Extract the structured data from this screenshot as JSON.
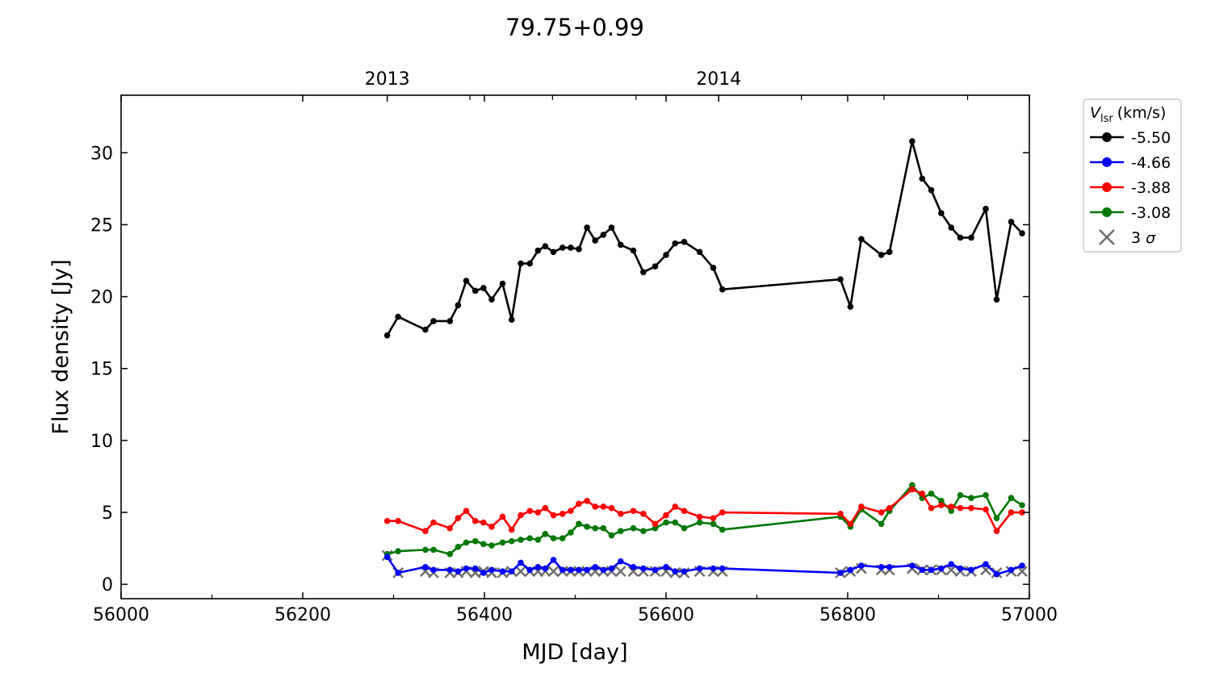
{
  "chart_data": {
    "type": "line",
    "title": "79.75+0.99",
    "xlabel": "MJD [day]",
    "ylabel": "Flux density [Jy]",
    "xlim": [
      56000,
      57000
    ],
    "ylim": [
      -1,
      34
    ],
    "x_ticks": [
      56000,
      56200,
      56400,
      56600,
      56800,
      57000
    ],
    "x_tick_labels": [
      "56000",
      "56200",
      "56400",
      "56600",
      "56800",
      "57000"
    ],
    "y_ticks": [
      0,
      5,
      10,
      15,
      20,
      25,
      30
    ],
    "y_tick_labels": [
      "0",
      "5",
      "10",
      "15",
      "20",
      "25",
      "30"
    ],
    "top_axis": {
      "ticks": [
        56293,
        56658
      ],
      "labels": [
        "2013",
        "2014"
      ]
    },
    "legend": {
      "title_main": "V",
      "title_sub": "lsr",
      "title_rest": "(km/s)",
      "placement": "outside-top-right"
    },
    "grid": false,
    "series": [
      {
        "name": "-5.50",
        "color": "#000000",
        "marker": "circle",
        "x": [
          56293,
          56305,
          56335,
          56344,
          56362,
          56371,
          56380,
          56390,
          56399,
          56408,
          56420,
          56430,
          56440,
          56450,
          56459,
          56467,
          56476,
          56486,
          56495,
          56504,
          56513,
          56522,
          56531,
          56540,
          56550,
          56564,
          56575,
          56588,
          56600,
          56610,
          56620,
          56637,
          56652,
          56662,
          56792,
          56803,
          56815,
          56837,
          56846,
          56871,
          56882,
          56892,
          56903,
          56914,
          56924,
          56936,
          56952,
          56964,
          56980,
          56992
        ],
        "y": [
          17.3,
          18.6,
          17.7,
          18.3,
          18.3,
          19.4,
          21.1,
          20.4,
          20.6,
          19.8,
          20.9,
          18.4,
          22.3,
          22.3,
          23.2,
          23.5,
          23.1,
          23.4,
          23.4,
          23.3,
          24.8,
          23.9,
          24.3,
          24.8,
          23.6,
          23.2,
          21.7,
          22.1,
          22.9,
          23.7,
          23.8,
          23.1,
          22.0,
          20.5,
          21.2,
          19.3,
          24.0,
          22.9,
          23.1,
          30.8,
          28.2,
          27.4,
          25.8,
          24.8,
          24.1,
          24.1,
          26.1,
          19.8,
          25.2,
          24.4
        ]
      },
      {
        "name": "-4.66",
        "color": "#0000ff",
        "marker": "circle",
        "x": [
          56293,
          56305,
          56335,
          56344,
          56362,
          56371,
          56380,
          56390,
          56399,
          56408,
          56420,
          56430,
          56440,
          56450,
          56459,
          56467,
          56476,
          56486,
          56495,
          56504,
          56513,
          56522,
          56531,
          56540,
          56550,
          56564,
          56575,
          56588,
          56600,
          56610,
          56620,
          56637,
          56652,
          56662,
          56792,
          56803,
          56815,
          56837,
          56846,
          56871,
          56882,
          56892,
          56903,
          56914,
          56924,
          56936,
          56952,
          56964,
          56980,
          56992
        ],
        "y": [
          1.9,
          0.8,
          1.2,
          1.0,
          1.0,
          0.9,
          1.1,
          1.1,
          0.8,
          1.0,
          0.9,
          0.9,
          1.5,
          1.0,
          1.2,
          1.1,
          1.7,
          1.0,
          1.0,
          1.0,
          1.0,
          1.2,
          1.0,
          1.1,
          1.6,
          1.2,
          1.1,
          1.0,
          1.2,
          0.9,
          0.9,
          1.1,
          1.1,
          1.1,
          0.8,
          1.0,
          1.3,
          1.2,
          1.2,
          1.3,
          1.0,
          1.0,
          1.1,
          1.4,
          1.1,
          1.0,
          1.4,
          0.7,
          1.0,
          1.3
        ]
      },
      {
        "name": "-3.88",
        "color": "#ff0000",
        "marker": "circle",
        "x": [
          56293,
          56305,
          56335,
          56344,
          56362,
          56371,
          56380,
          56390,
          56399,
          56408,
          56420,
          56430,
          56440,
          56450,
          56459,
          56467,
          56476,
          56486,
          56495,
          56504,
          56513,
          56522,
          56531,
          56540,
          56550,
          56564,
          56575,
          56588,
          56600,
          56610,
          56620,
          56637,
          56652,
          56662,
          56792,
          56803,
          56815,
          56837,
          56846,
          56871,
          56882,
          56892,
          56903,
          56914,
          56924,
          56936,
          56952,
          56964,
          56980,
          56992
        ],
        "y": [
          4.4,
          4.4,
          3.7,
          4.3,
          3.9,
          4.6,
          5.1,
          4.4,
          4.3,
          4.0,
          4.7,
          3.8,
          4.8,
          5.1,
          5.0,
          5.3,
          4.8,
          4.9,
          5.1,
          5.6,
          5.8,
          5.4,
          5.4,
          5.3,
          4.9,
          5.1,
          4.9,
          4.2,
          4.8,
          5.4,
          5.1,
          4.7,
          4.6,
          5.0,
          4.9,
          4.2,
          5.4,
          5.0,
          5.3,
          6.6,
          6.3,
          5.3,
          5.5,
          5.4,
          5.3,
          5.3,
          5.2,
          3.7,
          5.0,
          5.0
        ]
      },
      {
        "name": "-3.08",
        "color": "#007800",
        "marker": "circle",
        "x": [
          56293,
          56305,
          56335,
          56344,
          56362,
          56371,
          56380,
          56390,
          56399,
          56408,
          56420,
          56430,
          56440,
          56450,
          56459,
          56467,
          56476,
          56486,
          56495,
          56504,
          56513,
          56522,
          56531,
          56540,
          56550,
          56564,
          56575,
          56588,
          56600,
          56610,
          56620,
          56637,
          56652,
          56662,
          56792,
          56803,
          56815,
          56837,
          56846,
          56871,
          56882,
          56892,
          56903,
          56914,
          56924,
          56936,
          56952,
          56964,
          56980,
          56992
        ],
        "y": [
          2.1,
          2.3,
          2.4,
          2.4,
          2.1,
          2.6,
          2.9,
          3.0,
          2.8,
          2.7,
          2.9,
          3.0,
          3.1,
          3.2,
          3.1,
          3.5,
          3.2,
          3.2,
          3.6,
          4.2,
          4.0,
          3.9,
          3.9,
          3.4,
          3.7,
          3.9,
          3.7,
          3.9,
          4.3,
          4.3,
          3.9,
          4.3,
          4.2,
          3.8,
          4.7,
          4.0,
          5.2,
          4.2,
          5.1,
          6.9,
          6.0,
          6.3,
          5.8,
          5.1,
          6.2,
          6.0,
          6.2,
          4.6,
          6.0,
          5.5
        ]
      },
      {
        "name": "3 σ",
        "name_main": "3",
        "name_sub": "σ",
        "color": "#6e6e6e",
        "marker": "x",
        "line": false,
        "x": [
          56293,
          56305,
          56335,
          56344,
          56362,
          56371,
          56380,
          56390,
          56399,
          56408,
          56420,
          56430,
          56440,
          56450,
          56459,
          56467,
          56476,
          56486,
          56495,
          56504,
          56513,
          56522,
          56531,
          56540,
          56550,
          56564,
          56575,
          56588,
          56600,
          56610,
          56620,
          56637,
          56652,
          56662,
          56792,
          56803,
          56815,
          56837,
          56846,
          56871,
          56882,
          56892,
          56903,
          56914,
          56924,
          56936,
          56952,
          56964,
          56980,
          56992
        ],
        "y": [
          2.0,
          0.8,
          0.9,
          0.8,
          0.8,
          0.8,
          0.9,
          0.8,
          0.9,
          0.8,
          0.8,
          0.9,
          0.9,
          0.9,
          0.9,
          0.9,
          0.9,
          0.9,
          0.9,
          0.9,
          0.9,
          0.9,
          0.9,
          0.9,
          0.9,
          0.9,
          0.9,
          0.9,
          0.9,
          0.8,
          0.8,
          0.9,
          0.9,
          0.9,
          0.8,
          0.9,
          1.1,
          1.0,
          1.0,
          1.1,
          1.0,
          1.0,
          1.0,
          1.0,
          0.9,
          0.9,
          1.0,
          0.8,
          0.9,
          0.9
        ]
      }
    ]
  }
}
